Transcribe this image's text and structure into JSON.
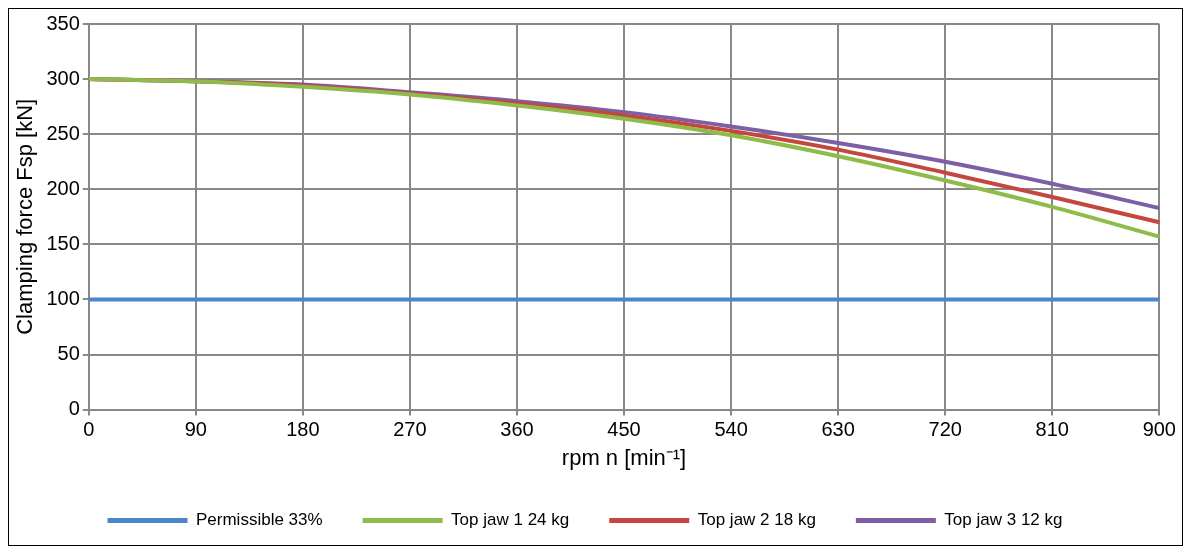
{
  "chart_data": {
    "type": "line",
    "xlabel": "rpm n [min⁻¹]",
    "ylabel": "Clamping force Fsp [kN]",
    "x": [
      0,
      90,
      180,
      270,
      360,
      450,
      540,
      630,
      720,
      810,
      900
    ],
    "series": [
      {
        "name": "Permissible 33%",
        "color": "#4a86c8",
        "values": [
          100,
          100,
          100,
          100,
          100,
          100,
          100,
          100,
          100,
          100,
          100
        ]
      },
      {
        "name": "Top jaw 1 24 kg",
        "color": "#8fbb4a",
        "values": [
          300,
          298,
          293,
          286,
          276,
          264,
          249,
          230,
          208,
          184,
          157
        ]
      },
      {
        "name": "Top jaw 2 18 kg",
        "color": "#c4473f",
        "values": [
          300,
          298,
          294,
          287,
          278,
          267,
          253,
          236,
          215,
          193,
          170
        ]
      },
      {
        "name": "Top jaw 3 12 kg",
        "color": "#7d5fa5",
        "values": [
          300,
          298,
          295,
          288,
          280,
          270,
          257,
          242,
          225,
          205,
          183
        ]
      }
    ],
    "xlim": [
      0,
      900
    ],
    "xticks": [
      0,
      90,
      180,
      270,
      360,
      450,
      540,
      630,
      720,
      810,
      900
    ],
    "ylim": [
      0,
      350
    ],
    "yticks": [
      0,
      50,
      100,
      150,
      200,
      250,
      300,
      350
    ],
    "grid": true,
    "legend": "bottom",
    "marker": "none",
    "line_style": "solid"
  }
}
